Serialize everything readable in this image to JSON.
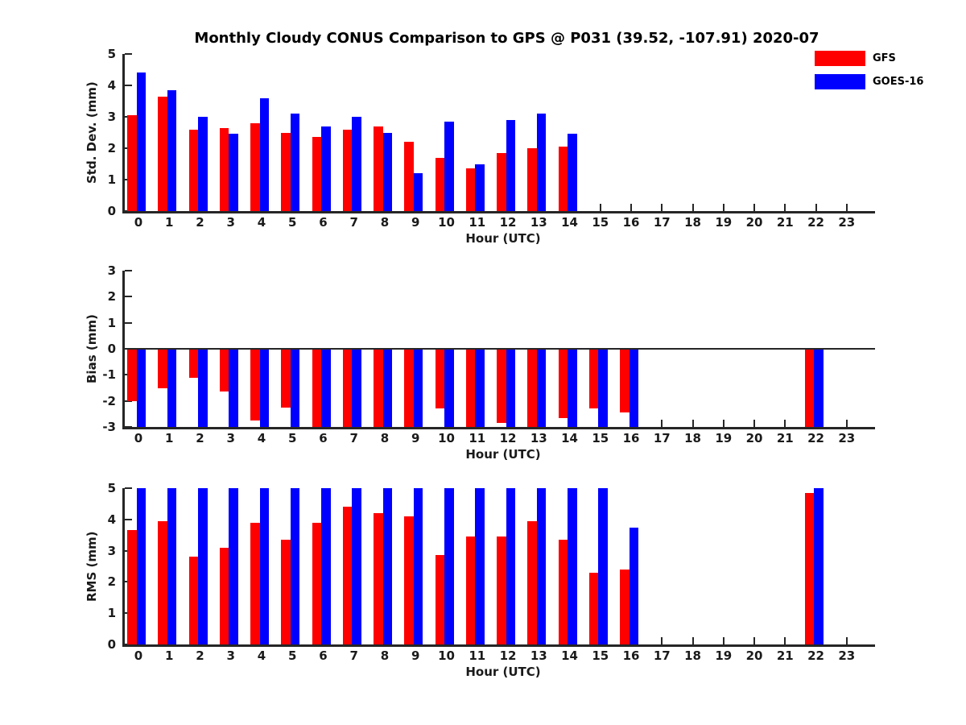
{
  "title": "Monthly Cloudy CONUS Comparison to GPS @ P031 (39.52, -107.91) 2020-07",
  "legend": {
    "items": [
      {
        "label": "GFS",
        "color": "#ff0000"
      },
      {
        "label": "GOES-16",
        "color": "#0000ff"
      }
    ]
  },
  "chart_data": [
    {
      "type": "bar",
      "ylabel": "Std. Dev. (mm)",
      "xlabel": "Hour (UTC)",
      "ylim": [
        0,
        5
      ],
      "yticks": [
        0,
        1,
        2,
        3,
        4,
        5
      ],
      "categories": [
        "0",
        "1",
        "2",
        "3",
        "4",
        "5",
        "6",
        "7",
        "8",
        "9",
        "10",
        "11",
        "12",
        "13",
        "14",
        "15",
        "16",
        "17",
        "18",
        "19",
        "20",
        "21",
        "22",
        "23"
      ],
      "grid": false,
      "legend_position": "upper-right-outside",
      "series": [
        {
          "name": "GFS",
          "color": "#ff0000",
          "values": [
            3.05,
            3.65,
            2.6,
            2.65,
            2.8,
            2.5,
            2.35,
            2.6,
            2.7,
            2.2,
            1.7,
            1.35,
            1.85,
            2.0,
            2.05,
            null,
            null,
            null,
            null,
            null,
            null,
            null,
            null,
            null
          ]
        },
        {
          "name": "GOES-16",
          "color": "#0000ff",
          "values": [
            4.4,
            3.85,
            3.0,
            2.45,
            3.6,
            3.1,
            2.7,
            3.0,
            2.5,
            1.2,
            2.85,
            1.5,
            2.9,
            3.1,
            2.45,
            null,
            null,
            null,
            null,
            null,
            null,
            null,
            null,
            null
          ]
        }
      ]
    },
    {
      "type": "bar",
      "ylabel": "Bias (mm)",
      "xlabel": "Hour (UTC)",
      "ylim": [
        -3,
        3
      ],
      "yticks": [
        3,
        2,
        1,
        0,
        -1,
        -2,
        -3
      ],
      "categories": [
        "0",
        "1",
        "2",
        "3",
        "4",
        "5",
        "6",
        "7",
        "8",
        "9",
        "10",
        "11",
        "12",
        "13",
        "14",
        "15",
        "16",
        "17",
        "18",
        "19",
        "20",
        "21",
        "22",
        "23"
      ],
      "grid": false,
      "note": "values at -3 are clipped at axis minimum",
      "series": [
        {
          "name": "GFS",
          "color": "#ff0000",
          "values": [
            -2.0,
            -1.5,
            -1.1,
            -1.65,
            -2.75,
            -2.25,
            -3,
            -3,
            -3,
            -3,
            -2.3,
            -3,
            -2.85,
            -3,
            -2.65,
            -2.3,
            -2.45,
            null,
            null,
            null,
            null,
            null,
            -3,
            null
          ]
        },
        {
          "name": "GOES-16",
          "color": "#0000ff",
          "values": [
            -3,
            -3,
            -3,
            -3,
            -3,
            -3,
            -3,
            -3,
            -3,
            -3,
            -3,
            -3,
            -3,
            -3,
            -3,
            -3,
            -3,
            null,
            null,
            null,
            null,
            null,
            -3,
            null
          ]
        }
      ]
    },
    {
      "type": "bar",
      "ylabel": "RMS (mm)",
      "xlabel": "Hour (UTC)",
      "ylim": [
        0,
        5
      ],
      "yticks": [
        0,
        1,
        2,
        3,
        4,
        5
      ],
      "categories": [
        "0",
        "1",
        "2",
        "3",
        "4",
        "5",
        "6",
        "7",
        "8",
        "9",
        "10",
        "11",
        "12",
        "13",
        "14",
        "15",
        "16",
        "17",
        "18",
        "19",
        "20",
        "21",
        "22",
        "23"
      ],
      "grid": false,
      "note": "values at 5 are clipped at axis maximum",
      "series": [
        {
          "name": "GFS",
          "color": "#ff0000",
          "values": [
            3.65,
            3.95,
            2.8,
            3.1,
            3.9,
            3.35,
            3.9,
            4.4,
            4.2,
            4.1,
            2.85,
            3.45,
            3.45,
            3.95,
            3.35,
            2.3,
            2.4,
            null,
            null,
            null,
            null,
            null,
            4.85,
            null
          ]
        },
        {
          "name": "GOES-16",
          "color": "#0000ff",
          "values": [
            5,
            5,
            5,
            5,
            5,
            5,
            5,
            5,
            5,
            5,
            5,
            5,
            5,
            5,
            5,
            5,
            3.75,
            null,
            null,
            null,
            null,
            null,
            5,
            null
          ]
        }
      ]
    }
  ]
}
